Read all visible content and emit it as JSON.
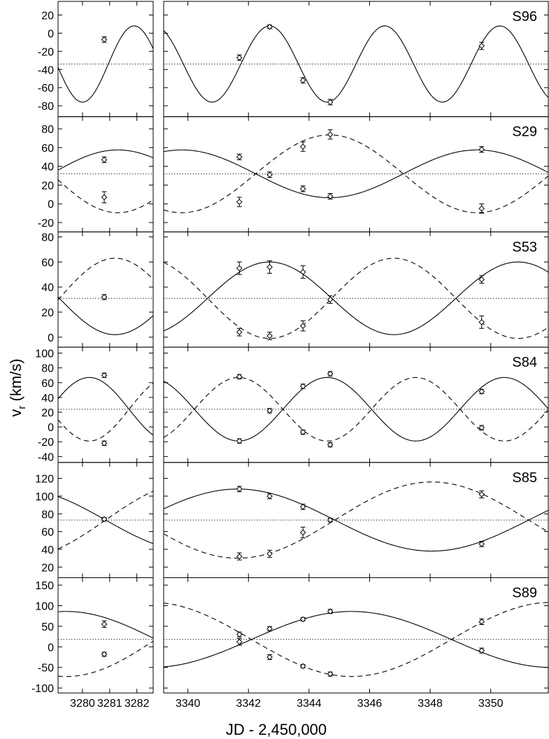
{
  "figure": {
    "ylabel_main": "v",
    "ylabel_sub": "r",
    "ylabel_units": " (km/s)",
    "xlabel": "JD - 2,450,000"
  },
  "chart_data": {
    "type": "line",
    "xlabel": "JD - 2,450,000",
    "ylabel": "v_r (km/s)",
    "x_panels": [
      {
        "xlim": [
          3279.1,
          3282.6
        ],
        "ticks": [
          3280,
          3281,
          3282
        ],
        "tick_labels": [
          "3280",
          "3281",
          "3282"
        ]
      },
      {
        "xlim": [
          3339.2,
          3351.9
        ],
        "ticks": [
          3340,
          3342,
          3344,
          3346,
          3348,
          3350
        ],
        "tick_labels": [
          "3340",
          "3342",
          "3344",
          "3346",
          "3348",
          "3350"
        ]
      }
    ],
    "panels": [
      {
        "name": "S96",
        "ylim": [
          -92,
          35
        ],
        "yticks": [
          -80,
          -60,
          -40,
          -20,
          0,
          20
        ],
        "systemic": -34,
        "curves": [
          {
            "style": "solid",
            "type": "sine",
            "gamma": -34,
            "K": 42,
            "P": 3.8,
            "t0": 3342.7
          }
        ],
        "points": [
          {
            "x": 3280.8,
            "y": -7,
            "err": 3,
            "comp": "primary"
          },
          {
            "x": 3341.7,
            "y": -27,
            "err": 3,
            "comp": "primary"
          },
          {
            "x": 3342.7,
            "y": 7,
            "err": 2,
            "comp": "primary"
          },
          {
            "x": 3343.8,
            "y": -52,
            "err": 3,
            "comp": "primary"
          },
          {
            "x": 3344.7,
            "y": -76,
            "err": 3,
            "comp": "primary"
          },
          {
            "x": 3349.7,
            "y": -14,
            "err": 4,
            "comp": "primary"
          }
        ]
      },
      {
        "name": "S29",
        "ylim": [
          -30,
          93
        ],
        "yticks": [
          -20,
          0,
          20,
          40,
          60,
          80
        ],
        "systemic": 32,
        "curves": [
          {
            "style": "solid",
            "type": "sine",
            "gamma": 32,
            "K": 25.5,
            "P": 9.75,
            "t0": 3349.55
          },
          {
            "style": "dashed",
            "type": "sine",
            "gamma": 32,
            "K": -41.5,
            "P": 9.75,
            "t0": 3349.55
          }
        ],
        "points": [
          {
            "x": 3280.8,
            "y": 47,
            "err": 3,
            "comp": "primary"
          },
          {
            "x": 3280.8,
            "y": 7,
            "err": 6,
            "comp": "secondary"
          },
          {
            "x": 3341.7,
            "y": 50,
            "err": 3,
            "comp": "primary"
          },
          {
            "x": 3341.7,
            "y": 2,
            "err": 5,
            "comp": "secondary"
          },
          {
            "x": 3342.7,
            "y": 31,
            "err": 3,
            "comp": "primary"
          },
          {
            "x": 3343.8,
            "y": 16,
            "err": 3,
            "comp": "primary"
          },
          {
            "x": 3343.8,
            "y": 61,
            "err": 5,
            "comp": "secondary"
          },
          {
            "x": 3344.7,
            "y": 8,
            "err": 3,
            "comp": "primary"
          },
          {
            "x": 3344.7,
            "y": 74,
            "err": 5,
            "comp": "secondary"
          },
          {
            "x": 3349.7,
            "y": 58,
            "err": 3,
            "comp": "primary"
          },
          {
            "x": 3349.7,
            "y": -5,
            "err": 5,
            "comp": "secondary"
          }
        ]
      },
      {
        "name": "S53",
        "ylim": [
          -8,
          84
        ],
        "yticks": [
          0,
          20,
          40,
          60,
          80
        ],
        "systemic": 31,
        "curves": [
          {
            "style": "solid",
            "type": "sine",
            "gamma": 31,
            "K": 29,
            "P": 8.2,
            "t0": 3342.7
          },
          {
            "style": "dashed",
            "type": "sine",
            "gamma": 31,
            "K": -32,
            "P": 8.2,
            "t0": 3342.7
          }
        ],
        "points": [
          {
            "x": 3280.8,
            "y": 32,
            "err": 2,
            "comp": "primary"
          },
          {
            "x": 3341.7,
            "y": 55,
            "err": 5,
            "comp": "primary"
          },
          {
            "x": 3341.7,
            "y": 4,
            "err": 3,
            "comp": "secondary"
          },
          {
            "x": 3342.7,
            "y": 56,
            "err": 5,
            "comp": "primary"
          },
          {
            "x": 3342.7,
            "y": 1,
            "err": 3,
            "comp": "secondary"
          },
          {
            "x": 3343.8,
            "y": 52,
            "err": 5,
            "comp": "primary"
          },
          {
            "x": 3343.8,
            "y": 9,
            "err": 4,
            "comp": "secondary"
          },
          {
            "x": 3344.7,
            "y": 30,
            "err": 3,
            "comp": "primary"
          },
          {
            "x": 3349.7,
            "y": 46,
            "err": 3,
            "comp": "primary"
          },
          {
            "x": 3349.7,
            "y": 12,
            "err": 5,
            "comp": "secondary"
          }
        ]
      },
      {
        "name": "S84",
        "ylim": [
          -48,
          108
        ],
        "yticks": [
          -40,
          -20,
          0,
          20,
          40,
          60,
          80,
          100
        ],
        "systemic": 24,
        "curves": [
          {
            "style": "solid",
            "type": "sine",
            "gamma": 24,
            "K": 43,
            "P": 5.85,
            "t0": 3344.6
          },
          {
            "style": "dashed",
            "type": "sine",
            "gamma": 24,
            "K": -43,
            "P": 5.85,
            "t0": 3344.6
          }
        ],
        "points": [
          {
            "x": 3280.8,
            "y": -22,
            "err": 3,
            "comp": "primary"
          },
          {
            "x": 3280.8,
            "y": 70,
            "err": 3,
            "comp": "secondary"
          },
          {
            "x": 3341.7,
            "y": -19,
            "err": 3,
            "comp": "primary"
          },
          {
            "x": 3341.7,
            "y": 68,
            "err": 3,
            "comp": "secondary"
          },
          {
            "x": 3342.7,
            "y": 22,
            "err": 3,
            "comp": "primary"
          },
          {
            "x": 3343.8,
            "y": 55,
            "err": 3,
            "comp": "primary"
          },
          {
            "x": 3343.8,
            "y": -7,
            "err": 3,
            "comp": "secondary"
          },
          {
            "x": 3344.7,
            "y": -24,
            "err": 3,
            "comp": "primary"
          },
          {
            "x": 3344.7,
            "y": 72,
            "err": 3,
            "comp": "secondary"
          },
          {
            "x": 3349.7,
            "y": 48,
            "err": 3,
            "comp": "primary"
          },
          {
            "x": 3349.7,
            "y": -1,
            "err": 3,
            "comp": "secondary"
          }
        ]
      },
      {
        "name": "S85",
        "ylim": [
          8,
          138
        ],
        "yticks": [
          20,
          40,
          60,
          80,
          100,
          120
        ],
        "systemic": 73,
        "curves": [
          {
            "style": "solid",
            "type": "sine",
            "gamma": 73,
            "K": 35,
            "P": 12.8,
            "t0": 3341.65
          },
          {
            "style": "dashed",
            "type": "sine",
            "gamma": 73,
            "K": -43,
            "P": 12.8,
            "t0": 3341.65
          }
        ],
        "points": [
          {
            "x": 3280.8,
            "y": 74,
            "err": 2,
            "comp": "primary"
          },
          {
            "x": 3341.7,
            "y": 108,
            "err": 3,
            "comp": "primary"
          },
          {
            "x": 3341.7,
            "y": 32,
            "err": 4,
            "comp": "secondary"
          },
          {
            "x": 3342.7,
            "y": 100,
            "err": 3,
            "comp": "primary"
          },
          {
            "x": 3342.7,
            "y": 35,
            "err": 4,
            "comp": "secondary"
          },
          {
            "x": 3343.8,
            "y": 88,
            "err": 3,
            "comp": "primary"
          },
          {
            "x": 3343.8,
            "y": 59,
            "err": 6,
            "comp": "secondary"
          },
          {
            "x": 3344.7,
            "y": 73,
            "err": 2,
            "comp": "primary"
          },
          {
            "x": 3349.7,
            "y": 46,
            "err": 3,
            "comp": "primary"
          },
          {
            "x": 3349.7,
            "y": 102,
            "err": 4,
            "comp": "secondary"
          }
        ]
      },
      {
        "name": "S89",
        "ylim": [
          -112,
          168
        ],
        "yticks": [
          -100,
          -50,
          0,
          50,
          100,
          150
        ],
        "systemic": 18,
        "curves": [
          {
            "style": "solid",
            "type": "sine",
            "gamma": 18,
            "K": 68,
            "P": 13.2,
            "t0": 3345.4
          },
          {
            "style": "dashed",
            "type": "sine",
            "gamma": 18,
            "K": -90,
            "P": 13.2,
            "t0": 3345.4
          }
        ],
        "points": [
          {
            "x": 3280.8,
            "y": -18,
            "err": 5,
            "comp": "primary"
          },
          {
            "x": 3280.8,
            "y": 55,
            "err": 8,
            "comp": "secondary"
          },
          {
            "x": 3341.7,
            "y": 12,
            "err": 8,
            "comp": "primary"
          },
          {
            "x": 3341.7,
            "y": 30,
            "err": 6,
            "comp": "secondary"
          },
          {
            "x": 3342.7,
            "y": 44,
            "err": 5,
            "comp": "primary"
          },
          {
            "x": 3342.7,
            "y": -25,
            "err": 6,
            "comp": "secondary"
          },
          {
            "x": 3343.8,
            "y": 67,
            "err": 4,
            "comp": "primary"
          },
          {
            "x": 3343.8,
            "y": -47,
            "err": 4,
            "comp": "secondary"
          },
          {
            "x": 3344.7,
            "y": 86,
            "err": 5,
            "comp": "primary"
          },
          {
            "x": 3344.7,
            "y": -66,
            "err": 5,
            "comp": "secondary"
          },
          {
            "x": 3349.7,
            "y": -9,
            "err": 6,
            "comp": "primary"
          },
          {
            "x": 3349.7,
            "y": 61,
            "err": 7,
            "comp": "secondary"
          }
        ]
      }
    ]
  }
}
